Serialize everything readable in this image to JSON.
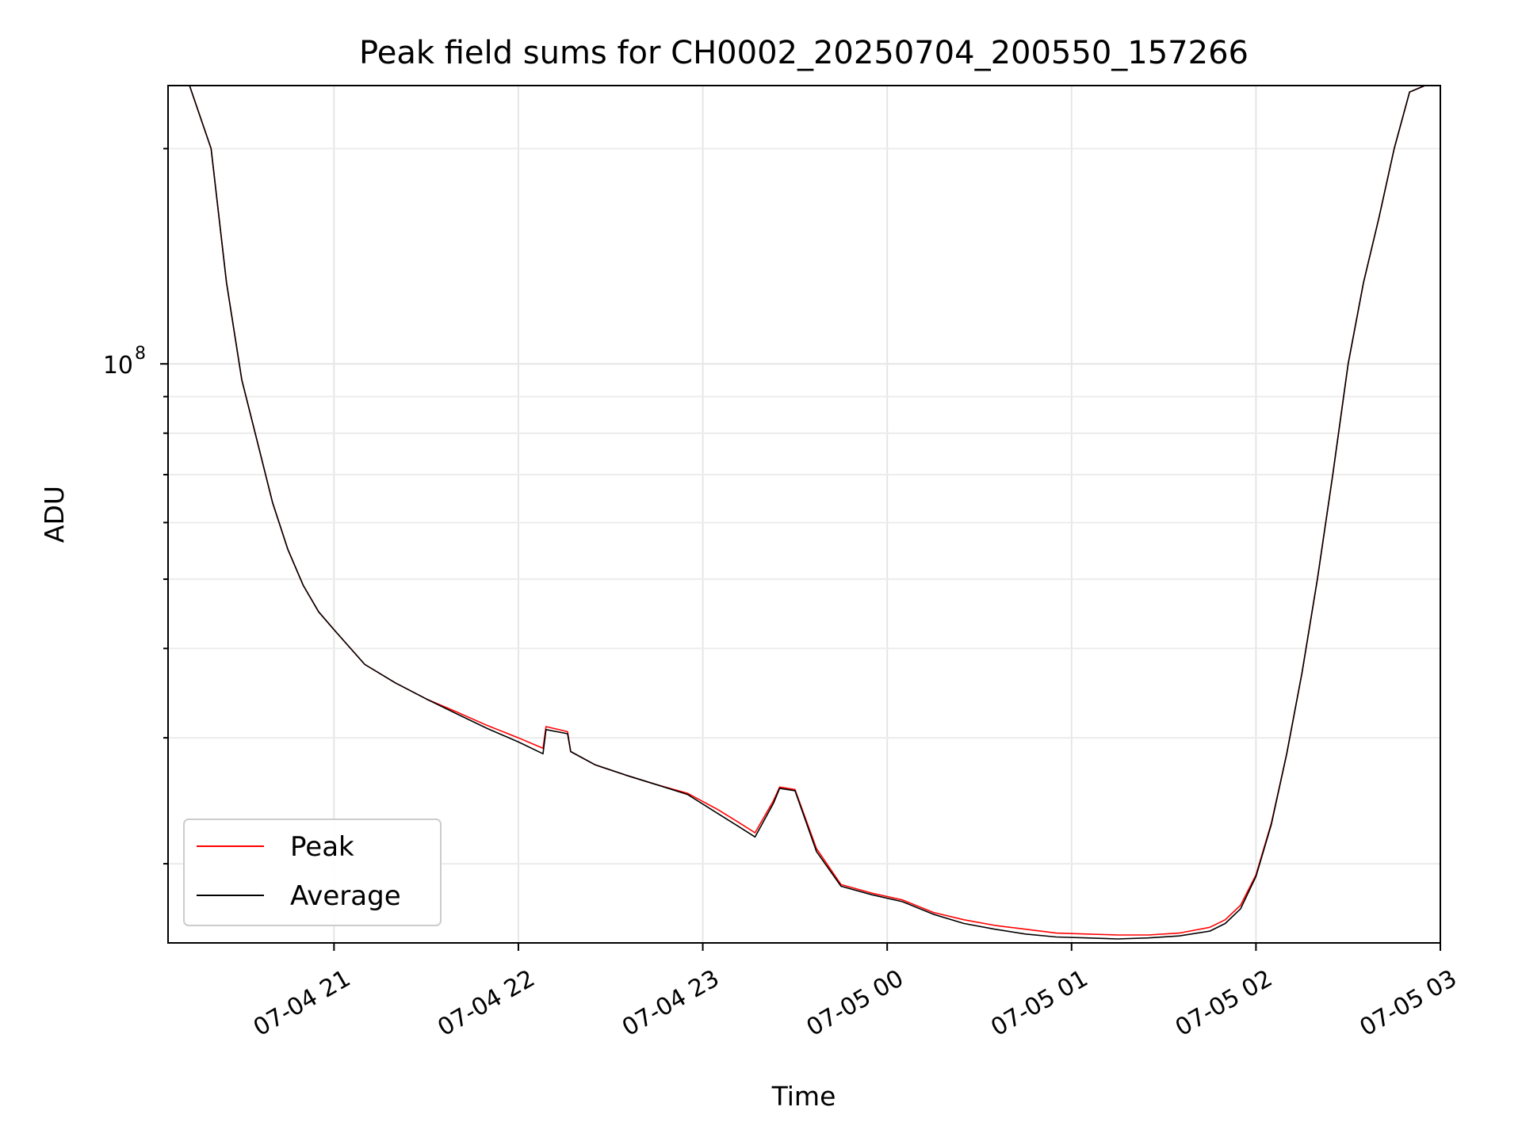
{
  "chart_data": {
    "type": "line",
    "title": "Peak field sums for CH0002_20250704_200550_157266",
    "xlabel": "Time",
    "ylabel": "ADU",
    "yscale": "log",
    "ylim": [
      15500000,
      245000000
    ],
    "xlim": [
      "2025-07-04 20:06",
      "2025-07-05 03:00"
    ],
    "x_ticks": [
      "07-04 21",
      "07-04 22",
      "07-04 23",
      "07-05 00",
      "07-05 01",
      "07-05 02",
      "07-05 03"
    ],
    "x_tick_times": [
      "2025-07-04 21:00",
      "2025-07-04 22:00",
      "2025-07-04 23:00",
      "2025-07-05 00:00",
      "2025-07-05 01:00",
      "2025-07-05 02:00",
      "2025-07-05 03:00"
    ],
    "y_ticks": [
      100000000
    ],
    "y_tick_labels": [
      "10",
      "8"
    ],
    "grid": true,
    "legend": "lower-left",
    "series": [
      {
        "name": "Peak",
        "color": "#ff0000",
        "x": [
          "2025-07-04 20:06",
          "2025-07-04 20:13",
          "2025-07-04 20:20",
          "2025-07-04 20:25",
          "2025-07-04 20:30",
          "2025-07-04 20:35",
          "2025-07-04 20:40",
          "2025-07-04 20:45",
          "2025-07-04 20:50",
          "2025-07-04 20:55",
          "2025-07-04 21:00",
          "2025-07-04 21:10",
          "2025-07-04 21:20",
          "2025-07-04 21:30",
          "2025-07-04 21:40",
          "2025-07-04 21:50",
          "2025-07-04 22:00",
          "2025-07-04 22:08",
          "2025-07-04 22:09",
          "2025-07-04 22:16",
          "2025-07-04 22:17",
          "2025-07-04 22:25",
          "2025-07-04 22:35",
          "2025-07-04 22:45",
          "2025-07-04 22:55",
          "2025-07-04 23:05",
          "2025-07-04 23:12",
          "2025-07-04 23:17",
          "2025-07-04 23:23",
          "2025-07-04 23:25",
          "2025-07-04 23:30",
          "2025-07-04 23:37",
          "2025-07-04 23:45",
          "2025-07-04 23:55",
          "2025-07-05 00:05",
          "2025-07-05 00:15",
          "2025-07-05 00:25",
          "2025-07-05 00:35",
          "2025-07-05 00:45",
          "2025-07-05 00:55",
          "2025-07-05 01:05",
          "2025-07-05 01:15",
          "2025-07-05 01:25",
          "2025-07-05 01:35",
          "2025-07-05 01:45",
          "2025-07-05 01:50",
          "2025-07-05 01:55",
          "2025-07-05 02:00",
          "2025-07-05 02:05",
          "2025-07-05 02:10",
          "2025-07-05 02:15",
          "2025-07-05 02:20",
          "2025-07-05 02:25",
          "2025-07-05 02:30",
          "2025-07-05 02:35",
          "2025-07-05 02:40",
          "2025-07-05 02:45",
          "2025-07-05 02:50",
          "2025-07-05 02:55",
          "2025-07-05 03:00"
        ],
        "y": [
          245000000,
          245000000,
          200000000,
          130000000,
          95000000,
          78000000,
          64000000,
          55000000,
          49000000,
          45000000,
          42500000,
          38000000,
          35800000,
          34000000,
          32600000,
          31200000,
          30000000,
          29000000,
          31100000,
          30600000,
          28700000,
          27500000,
          26600000,
          25800000,
          25100000,
          23800000,
          22800000,
          22100000,
          24500000,
          25600000,
          25400000,
          21000000,
          18700000,
          18200000,
          17800000,
          17100000,
          16700000,
          16400000,
          16200000,
          16000000,
          15950000,
          15900000,
          15900000,
          16000000,
          16300000,
          16700000,
          17500000,
          19300000,
          22800000,
          28500000,
          37000000,
          50000000,
          70000000,
          100000000,
          130000000,
          160000000,
          200000000,
          240000000,
          245000000,
          245000000
        ]
      },
      {
        "name": "Average",
        "color": "#000000",
        "x": [
          "2025-07-04 20:06",
          "2025-07-04 20:13",
          "2025-07-04 20:20",
          "2025-07-04 20:25",
          "2025-07-04 20:30",
          "2025-07-04 20:35",
          "2025-07-04 20:40",
          "2025-07-04 20:45",
          "2025-07-04 20:50",
          "2025-07-04 20:55",
          "2025-07-04 21:00",
          "2025-07-04 21:10",
          "2025-07-04 21:20",
          "2025-07-04 21:30",
          "2025-07-04 21:40",
          "2025-07-04 21:50",
          "2025-07-04 22:00",
          "2025-07-04 22:08",
          "2025-07-04 22:09",
          "2025-07-04 22:16",
          "2025-07-04 22:17",
          "2025-07-04 22:25",
          "2025-07-04 22:35",
          "2025-07-04 22:45",
          "2025-07-04 22:55",
          "2025-07-04 23:05",
          "2025-07-04 23:12",
          "2025-07-04 23:17",
          "2025-07-04 23:23",
          "2025-07-04 23:25",
          "2025-07-04 23:30",
          "2025-07-04 23:37",
          "2025-07-04 23:45",
          "2025-07-04 23:55",
          "2025-07-05 00:05",
          "2025-07-05 00:15",
          "2025-07-05 00:25",
          "2025-07-05 00:35",
          "2025-07-05 00:45",
          "2025-07-05 00:55",
          "2025-07-05 01:05",
          "2025-07-05 01:15",
          "2025-07-05 01:25",
          "2025-07-05 01:35",
          "2025-07-05 01:45",
          "2025-07-05 01:50",
          "2025-07-05 01:55",
          "2025-07-05 02:00",
          "2025-07-05 02:05",
          "2025-07-05 02:10",
          "2025-07-05 02:15",
          "2025-07-05 02:20",
          "2025-07-05 02:25",
          "2025-07-05 02:30",
          "2025-07-05 02:35",
          "2025-07-05 02:40",
          "2025-07-05 02:45",
          "2025-07-05 02:50",
          "2025-07-05 02:55",
          "2025-07-05 03:00"
        ],
        "y": [
          245000000,
          245000000,
          200000000,
          130000000,
          95000000,
          78000000,
          64000000,
          55000000,
          49000000,
          45000000,
          42500000,
          38000000,
          35800000,
          34000000,
          32400000,
          30900000,
          29600000,
          28500000,
          30800000,
          30400000,
          28700000,
          27500000,
          26600000,
          25800000,
          25000000,
          23500000,
          22500000,
          21800000,
          24300000,
          25500000,
          25300000,
          20800000,
          18600000,
          18100000,
          17700000,
          17000000,
          16500000,
          16200000,
          15950000,
          15800000,
          15750000,
          15700000,
          15750000,
          15850000,
          16100000,
          16500000,
          17300000,
          19200000,
          22700000,
          28500000,
          37000000,
          50000000,
          70000000,
          100000000,
          130000000,
          160000000,
          200000000,
          240000000,
          245000000,
          245000000
        ]
      }
    ]
  }
}
